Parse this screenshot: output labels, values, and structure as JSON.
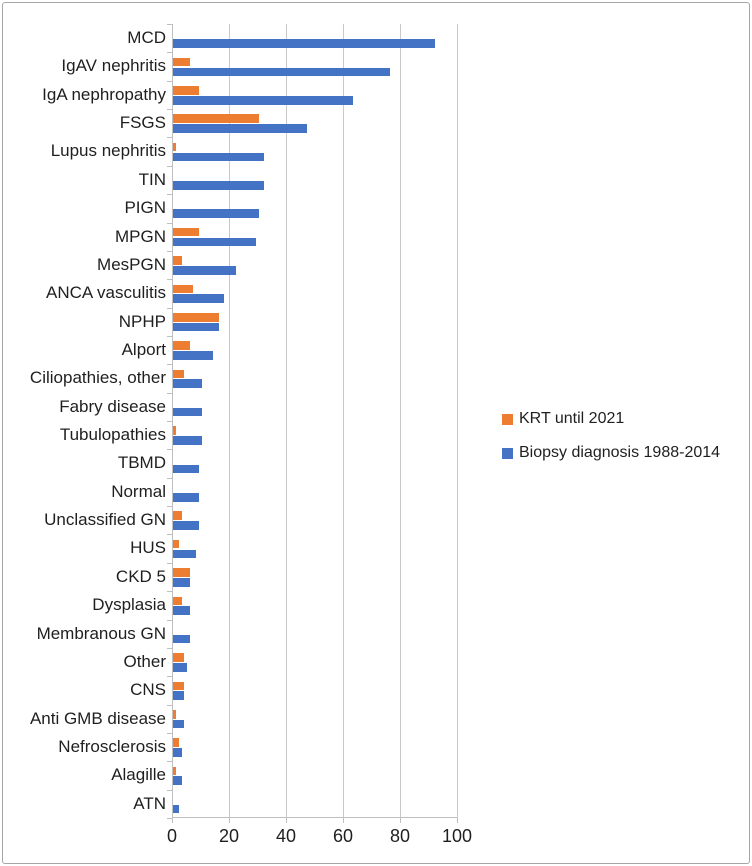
{
  "chart_data": {
    "type": "bar",
    "orientation": "horizontal",
    "title": "",
    "xlabel": "",
    "ylabel": "",
    "xlim": [
      0,
      100
    ],
    "x_ticks": [
      0,
      20,
      40,
      60,
      80,
      100
    ],
    "grid": "vertical-major",
    "legend_position": "right-middle",
    "categories": [
      "MCD",
      "IgAV nephritis",
      "IgA nephropathy",
      "FSGS",
      "Lupus nephritis",
      "TIN",
      "PIGN",
      "MPGN",
      "MesPGN",
      "ANCA vasculitis",
      "NPHP",
      "Alport",
      "Ciliopathies, other",
      "Fabry disease",
      "Tubulopathies",
      "TBMD",
      "Normal",
      "Unclassified GN",
      "HUS",
      "CKD 5",
      "Dysplasia",
      "Membranous GN",
      "Other",
      "CNS",
      "Anti GMB disease",
      "Nefrosclerosis",
      "Alagille",
      "ATN"
    ],
    "series": [
      {
        "name": "KRT until 2021",
        "color": "#ED7D31",
        "values": [
          0,
          6,
          9,
          30,
          1,
          0,
          0,
          9,
          3,
          7,
          16,
          6,
          4,
          0,
          1,
          0,
          0,
          3,
          2,
          6,
          3,
          0,
          4,
          4,
          1,
          2,
          1,
          0
        ]
      },
      {
        "name": "Biopsy diagnosis 1988-2014",
        "color": "#4472C4",
        "values": [
          92,
          76,
          63,
          47,
          32,
          32,
          30,
          29,
          22,
          18,
          16,
          14,
          10,
          10,
          10,
          9,
          9,
          9,
          8,
          6,
          6,
          6,
          5,
          4,
          4,
          3,
          3,
          2
        ]
      }
    ]
  },
  "legend": {
    "items": [
      {
        "label": "KRT until 2021",
        "color": "#ED7D31"
      },
      {
        "label": "Biopsy diagnosis 1988-2014",
        "color": "#4472C4"
      }
    ]
  },
  "colors": {
    "gridline": "#c9c9c9",
    "axis": "#bfbfbf",
    "border": "#a6a6a6",
    "text": "#1f1f1f",
    "background": "#ffffff"
  }
}
